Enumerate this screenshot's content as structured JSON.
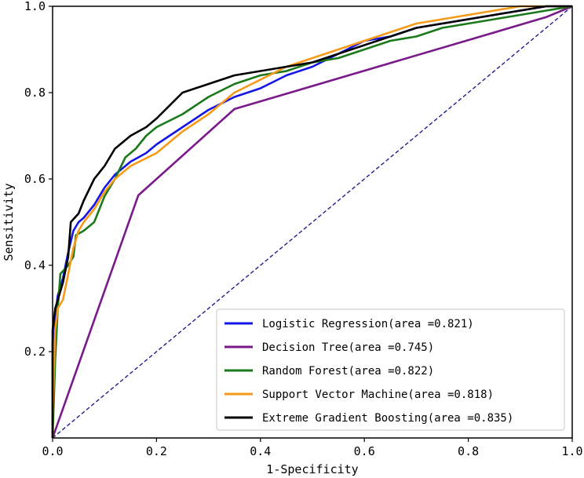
{
  "chart_data": {
    "type": "line",
    "title": "",
    "xlabel": "1-Specificity",
    "ylabel": "Sensitivity",
    "xlim": [
      0.0,
      1.0
    ],
    "ylim": [
      0.0,
      1.0
    ],
    "xticks": [
      0.0,
      0.2,
      0.4,
      0.6,
      0.8,
      1.0
    ],
    "xtick_labels": [
      "0.0",
      "0.2",
      "0.4",
      "0.6",
      "0.8",
      "1.0"
    ],
    "yticks": [
      0.2,
      0.4,
      0.6,
      0.8,
      1.0
    ],
    "ytick_labels": [
      "0.2",
      "0.4",
      "0.6",
      "0.8",
      "1.0"
    ],
    "legend_position": "lower-right",
    "grid": false,
    "reference_line": {
      "name": "chance",
      "color": "#1f1f8f",
      "style": "dashed",
      "points": [
        [
          0,
          0
        ],
        [
          1,
          1
        ]
      ]
    },
    "series": [
      {
        "name": "Logistic Regression",
        "legend_label": "Logistic Regression(area =0.821)",
        "auc": 0.821,
        "color": "#1515e6",
        "points": [
          [
            0,
            0
          ],
          [
            0,
            0.22
          ],
          [
            0.005,
            0.28
          ],
          [
            0.01,
            0.33
          ],
          [
            0.02,
            0.37
          ],
          [
            0.03,
            0.43
          ],
          [
            0.04,
            0.48
          ],
          [
            0.05,
            0.5
          ],
          [
            0.06,
            0.51
          ],
          [
            0.08,
            0.54
          ],
          [
            0.1,
            0.58
          ],
          [
            0.12,
            0.61
          ],
          [
            0.15,
            0.64
          ],
          [
            0.18,
            0.66
          ],
          [
            0.2,
            0.68
          ],
          [
            0.25,
            0.72
          ],
          [
            0.3,
            0.76
          ],
          [
            0.35,
            0.79
          ],
          [
            0.4,
            0.81
          ],
          [
            0.45,
            0.84
          ],
          [
            0.5,
            0.86
          ],
          [
            0.55,
            0.89
          ],
          [
            0.6,
            0.92
          ],
          [
            0.65,
            0.93
          ],
          [
            0.7,
            0.95
          ],
          [
            0.75,
            0.96
          ],
          [
            0.8,
            0.97
          ],
          [
            0.85,
            0.98
          ],
          [
            0.9,
            0.99
          ],
          [
            0.95,
            1.0
          ],
          [
            1,
            1
          ]
        ]
      },
      {
        "name": "Decision Tree",
        "legend_label": "Decision Tree(area =0.745)",
        "auc": 0.745,
        "color": "#7a1a8a",
        "points": [
          [
            0,
            0
          ],
          [
            0.165,
            0.562
          ],
          [
            0.35,
            0.762
          ],
          [
            0.95,
            0.975
          ],
          [
            1,
            1
          ]
        ]
      },
      {
        "name": "Random Forest",
        "legend_label": "Random Forest(area =0.822)",
        "auc": 0.822,
        "color": "#1a7a1a",
        "points": [
          [
            0,
            0
          ],
          [
            0.005,
            0.18
          ],
          [
            0.01,
            0.3
          ],
          [
            0.015,
            0.38
          ],
          [
            0.03,
            0.4
          ],
          [
            0.04,
            0.42
          ],
          [
            0.045,
            0.47
          ],
          [
            0.06,
            0.48
          ],
          [
            0.08,
            0.5
          ],
          [
            0.1,
            0.56
          ],
          [
            0.12,
            0.6
          ],
          [
            0.14,
            0.65
          ],
          [
            0.16,
            0.67
          ],
          [
            0.18,
            0.7
          ],
          [
            0.2,
            0.72
          ],
          [
            0.25,
            0.75
          ],
          [
            0.3,
            0.79
          ],
          [
            0.35,
            0.82
          ],
          [
            0.4,
            0.84
          ],
          [
            0.45,
            0.85
          ],
          [
            0.5,
            0.87
          ],
          [
            0.55,
            0.88
          ],
          [
            0.6,
            0.9
          ],
          [
            0.65,
            0.92
          ],
          [
            0.7,
            0.93
          ],
          [
            0.75,
            0.95
          ],
          [
            0.8,
            0.96
          ],
          [
            0.85,
            0.97
          ],
          [
            0.9,
            0.98
          ],
          [
            0.95,
            0.99
          ],
          [
            1,
            1
          ]
        ]
      },
      {
        "name": "Support Vector Machine",
        "legend_label": "Support Vector Machine(area =0.818)",
        "auc": 0.818,
        "color": "#f59a1a",
        "points": [
          [
            0,
            0
          ],
          [
            0,
            0.05
          ],
          [
            0.005,
            0.25
          ],
          [
            0.01,
            0.3
          ],
          [
            0.02,
            0.32
          ],
          [
            0.03,
            0.38
          ],
          [
            0.04,
            0.44
          ],
          [
            0.05,
            0.48
          ],
          [
            0.06,
            0.5
          ],
          [
            0.08,
            0.53
          ],
          [
            0.1,
            0.57
          ],
          [
            0.12,
            0.6
          ],
          [
            0.15,
            0.63
          ],
          [
            0.2,
            0.66
          ],
          [
            0.25,
            0.71
          ],
          [
            0.3,
            0.75
          ],
          [
            0.35,
            0.8
          ],
          [
            0.4,
            0.83
          ],
          [
            0.45,
            0.86
          ],
          [
            0.5,
            0.88
          ],
          [
            0.55,
            0.9
          ],
          [
            0.6,
            0.92
          ],
          [
            0.65,
            0.94
          ],
          [
            0.7,
            0.96
          ],
          [
            0.75,
            0.97
          ],
          [
            0.8,
            0.98
          ],
          [
            0.85,
            0.99
          ],
          [
            0.9,
            1.0
          ],
          [
            1,
            1
          ]
        ]
      },
      {
        "name": "Extreme Gradient Boosting",
        "legend_label": "Extreme Gradient Boosting(area =0.835)",
        "auc": 0.835,
        "color": "#000000",
        "points": [
          [
            0,
            0
          ],
          [
            0,
            0.25
          ],
          [
            0.005,
            0.3
          ],
          [
            0.01,
            0.32
          ],
          [
            0.02,
            0.36
          ],
          [
            0.03,
            0.42
          ],
          [
            0.035,
            0.5
          ],
          [
            0.05,
            0.52
          ],
          [
            0.06,
            0.55
          ],
          [
            0.08,
            0.6
          ],
          [
            0.1,
            0.63
          ],
          [
            0.12,
            0.67
          ],
          [
            0.15,
            0.7
          ],
          [
            0.18,
            0.72
          ],
          [
            0.2,
            0.74
          ],
          [
            0.25,
            0.8
          ],
          [
            0.3,
            0.82
          ],
          [
            0.35,
            0.84
          ],
          [
            0.4,
            0.85
          ],
          [
            0.45,
            0.86
          ],
          [
            0.5,
            0.87
          ],
          [
            0.55,
            0.89
          ],
          [
            0.6,
            0.91
          ],
          [
            0.65,
            0.93
          ],
          [
            0.7,
            0.95
          ],
          [
            0.75,
            0.96
          ],
          [
            0.8,
            0.97
          ],
          [
            0.85,
            0.98
          ],
          [
            0.9,
            0.99
          ],
          [
            0.95,
            1.0
          ],
          [
            1,
            1
          ]
        ]
      }
    ]
  }
}
